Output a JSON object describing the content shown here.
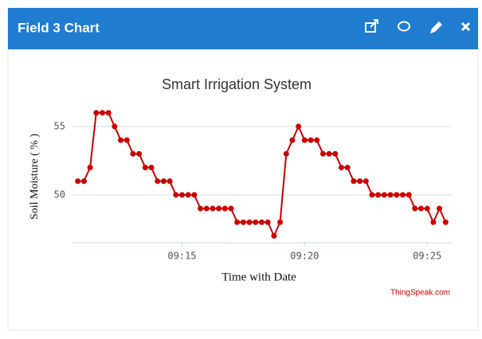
{
  "header": {
    "title": "Field 3 Chart"
  },
  "chart_data": {
    "type": "line",
    "title": "Smart Irrigation System",
    "x_label": "Time with Date",
    "y_label": "Soil Moisture ( % )",
    "x": [
      550.75,
      551,
      551.25,
      551.5,
      551.75,
      552,
      552.25,
      552.5,
      552.75,
      553,
      553.25,
      553.5,
      553.75,
      554,
      554.25,
      554.5,
      554.75,
      555,
      555.25,
      555.5,
      555.75,
      556,
      556.25,
      556.5,
      556.75,
      557,
      557.25,
      557.5,
      557.75,
      558,
      558.25,
      558.5,
      558.75,
      559,
      559.25,
      559.5,
      559.75,
      560,
      560.25,
      560.5,
      560.75,
      561,
      561.25,
      561.5,
      561.75,
      562,
      562.25,
      562.5,
      562.75,
      563,
      563.25,
      563.5,
      563.75,
      564,
      564.25,
      564.5,
      564.75,
      565,
      565.25,
      565.5,
      565.75
    ],
    "series": [
      {
        "color": "#cc0000",
        "values": [
          51,
          51,
          52,
          56,
          56,
          56,
          55,
          54,
          54,
          53,
          53,
          52,
          52,
          51,
          51,
          51,
          50,
          50,
          50,
          50,
          49,
          49,
          49,
          49,
          49,
          49,
          48,
          48,
          48,
          48,
          48,
          48,
          47,
          48,
          53,
          54,
          55,
          54,
          54,
          54,
          53,
          53,
          53,
          52,
          52,
          51,
          51,
          51,
          50,
          50,
          50,
          50,
          50,
          50,
          50,
          49,
          49,
          49,
          48,
          49,
          48
        ]
      }
    ],
    "xlim": [
      550.5,
      566
    ],
    "xticks": [
      {
        "value": 555,
        "label": "09:15"
      },
      {
        "value": 560,
        "label": "09:20"
      },
      {
        "value": 565,
        "label": "09:25"
      }
    ],
    "ylim": [
      46.5,
      56.8
    ],
    "yticks": [
      50,
      55
    ],
    "grid": true
  },
  "watermark": "ThingSpeak.com"
}
